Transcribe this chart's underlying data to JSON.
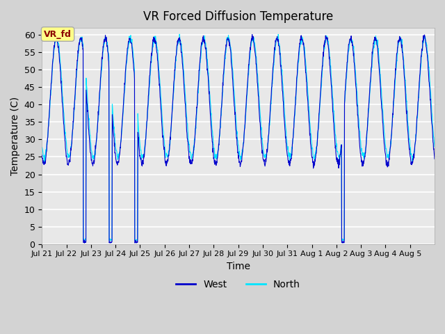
{
  "title": "VR Forced Diffusion Temperature",
  "xlabel": "Time",
  "ylabel": "Temperature (C)",
  "ylim": [
    0,
    62
  ],
  "yticks": [
    0,
    5,
    10,
    15,
    20,
    25,
    30,
    35,
    40,
    45,
    50,
    55,
    60
  ],
  "plot_bg": "#e8e8e8",
  "fig_bg": "#d3d3d3",
  "west_color": "#0000cc",
  "north_color": "#00e5ff",
  "legend_west": "West",
  "legend_north": "North",
  "annotation_text": "VR_fd",
  "annotation_bg": "#ffff88",
  "annotation_edge": "#aaaaaa",
  "annotation_text_color": "#8b0000",
  "x_tick_labels": [
    "Jul 21",
    "Jul 22",
    "Jul 23",
    "Jul 24",
    "Jul 25",
    "Jul 26",
    "Jul 27",
    "Jul 28",
    "Jul 29",
    "Jul 30",
    "Jul 31",
    "Aug 1",
    "Aug 2",
    "Aug 3",
    "Aug 4",
    "Aug 5"
  ],
  "figsize": [
    6.4,
    4.8
  ],
  "dpi": 100
}
